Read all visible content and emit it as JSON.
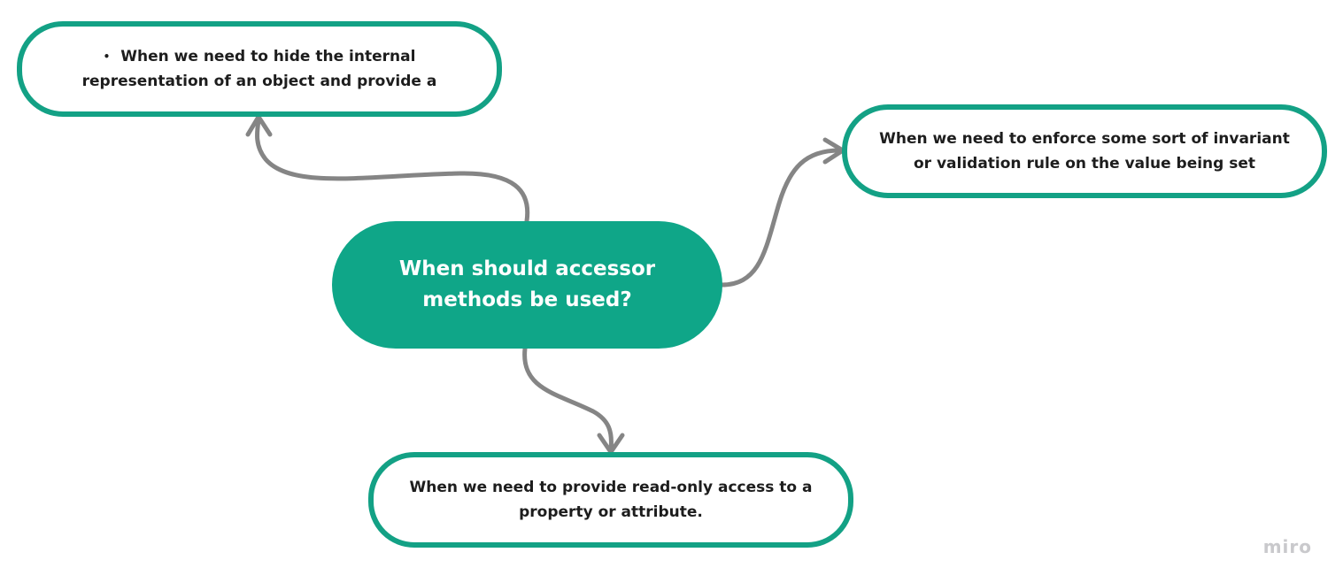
{
  "diagram": {
    "root": {
      "lines": [
        "When should accessor",
        "methods be used?"
      ],
      "fill_color": "#0fa688"
    },
    "children": [
      {
        "bullet": "•",
        "lines": [
          "When we need to hide the internal",
          "representation of an object and provide a"
        ]
      },
      {
        "lines": [
          "When we need to enforce some sort of invariant",
          "or validation rule on the value being set"
        ]
      },
      {
        "lines": [
          "When we need to provide read-only access to a",
          "property or attribute."
        ]
      }
    ],
    "border_color": "#13a185",
    "connector_color": "#858585"
  },
  "watermark": "miro"
}
